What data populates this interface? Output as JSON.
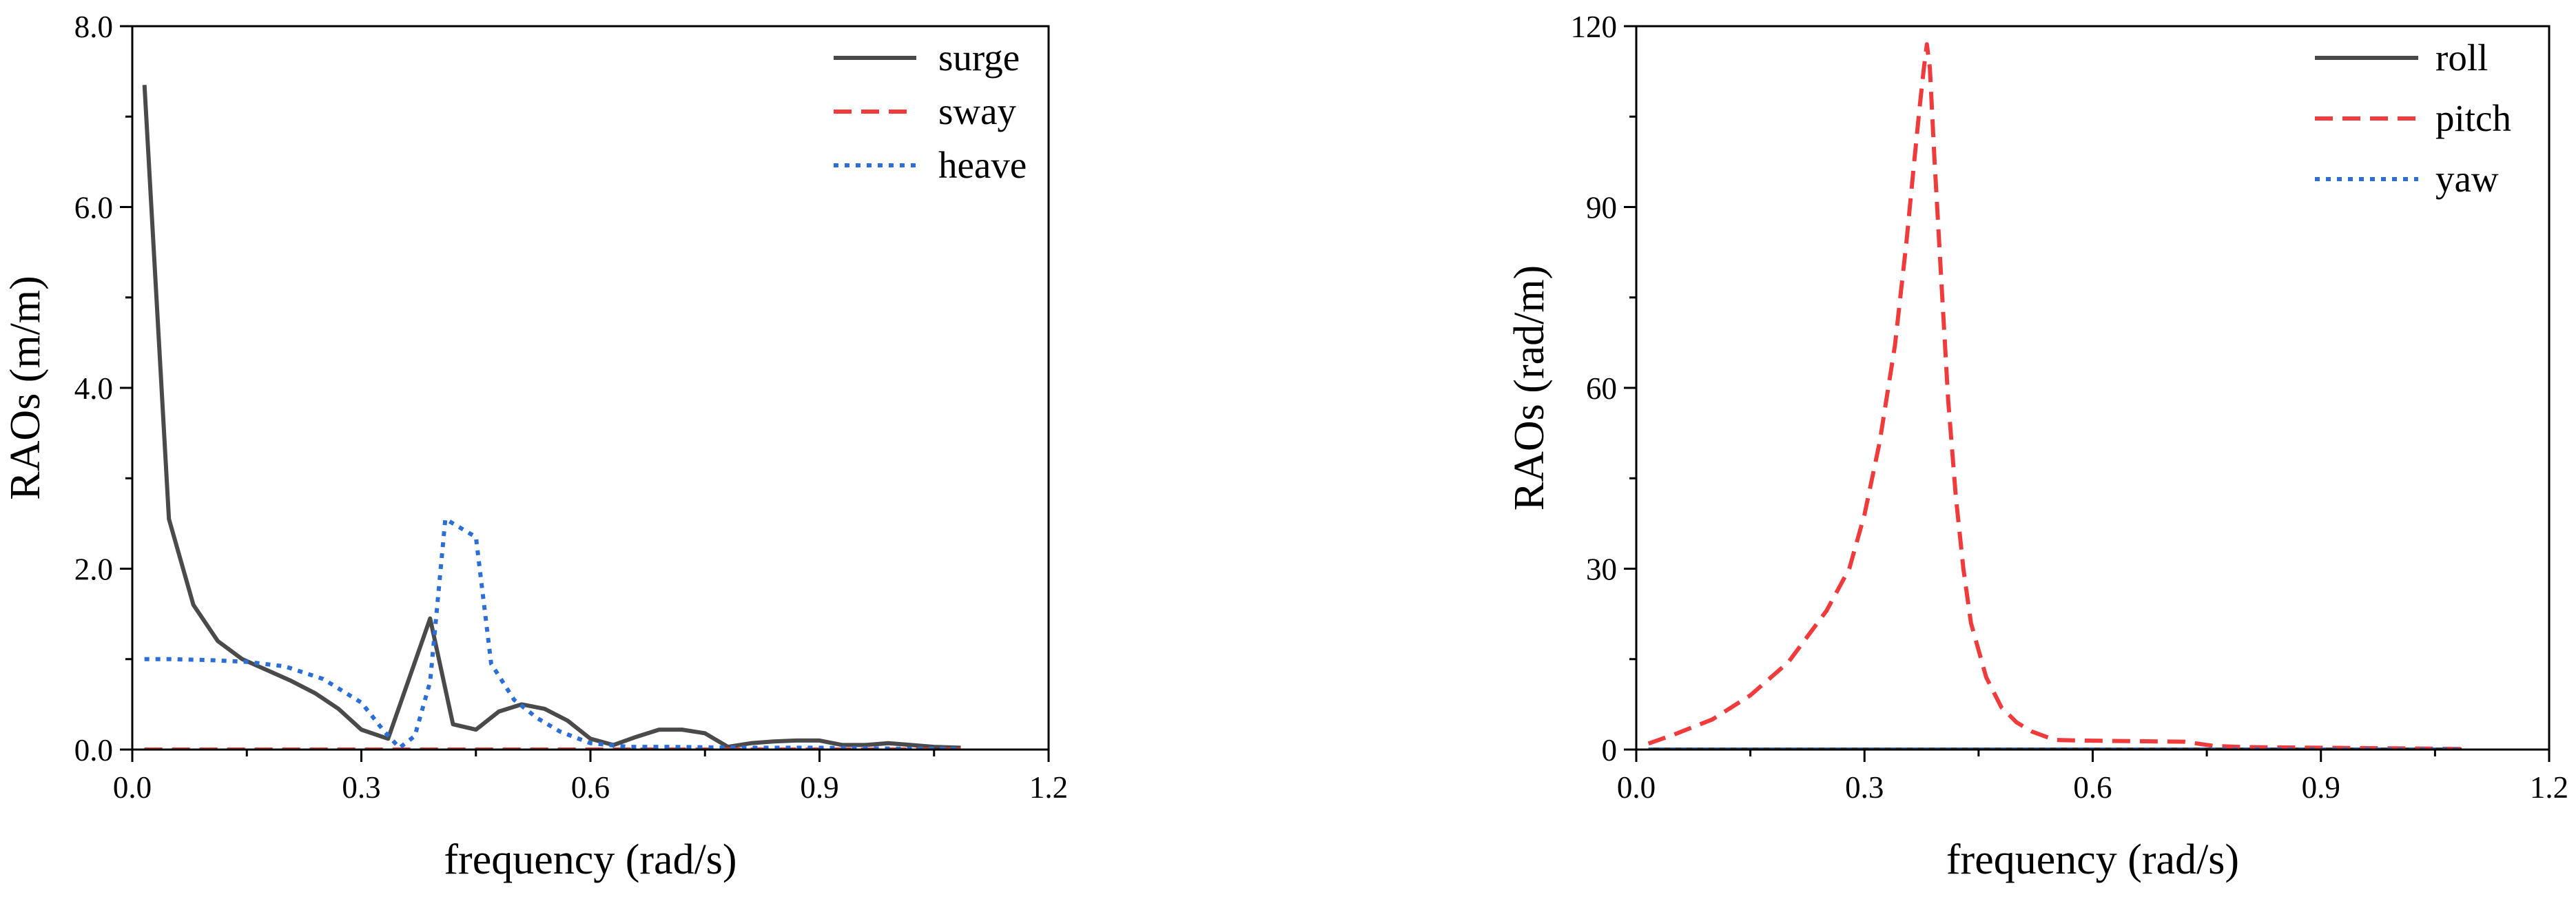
{
  "chart_data": [
    {
      "type": "line",
      "xlabel": "frequency (rad/s)",
      "ylabel": "RAOs (m/m)",
      "xlim": [
        0.0,
        1.2
      ],
      "ylim": [
        0.0,
        8.0
      ],
      "x_ticks": [
        0.0,
        0.3,
        0.6,
        0.9,
        1.2
      ],
      "x_tick_labels": [
        "0.0",
        "0.3",
        "0.6",
        "0.9",
        "1.2"
      ],
      "y_ticks": [
        0.0,
        2.0,
        4.0,
        6.0,
        8.0
      ],
      "y_tick_labels": [
        "0.0",
        "2.0",
        "4.0",
        "6.0",
        "8.0"
      ],
      "legend_position": "top-right",
      "series": [
        {
          "name": "surge",
          "color": "#4a4a4a",
          "style": "solid",
          "x": [
            0.016,
            0.048,
            0.08,
            0.112,
            0.144,
            0.176,
            0.208,
            0.24,
            0.27,
            0.3,
            0.335,
            0.39,
            0.42,
            0.45,
            0.48,
            0.51,
            0.54,
            0.57,
            0.6,
            0.63,
            0.66,
            0.69,
            0.72,
            0.75,
            0.78,
            0.81,
            0.84,
            0.87,
            0.9,
            0.93,
            0.96,
            0.99,
            1.02,
            1.05,
            1.085
          ],
          "y": [
            7.35,
            2.55,
            1.6,
            1.2,
            1.0,
            0.88,
            0.76,
            0.62,
            0.45,
            0.22,
            0.12,
            1.45,
            0.28,
            0.22,
            0.42,
            0.5,
            0.45,
            0.32,
            0.12,
            0.05,
            0.14,
            0.22,
            0.22,
            0.18,
            0.03,
            0.07,
            0.09,
            0.1,
            0.1,
            0.05,
            0.05,
            0.07,
            0.05,
            0.03,
            0.02
          ]
        },
        {
          "name": "sway",
          "color": "#ef3b3b",
          "style": "dashed",
          "x": [
            0.016,
            0.3,
            0.6,
            0.9,
            1.085
          ],
          "y": [
            0.0,
            0.0,
            0.0,
            0.0,
            0.0
          ]
        },
        {
          "name": "heave",
          "color": "#2b6fd6",
          "style": "dotted",
          "x": [
            0.016,
            0.05,
            0.1,
            0.15,
            0.2,
            0.25,
            0.3,
            0.33,
            0.35,
            0.37,
            0.39,
            0.41,
            0.43,
            0.45,
            0.47,
            0.5,
            0.53,
            0.56,
            0.6,
            0.65,
            0.7,
            0.8,
            0.9,
            1.0,
            1.085
          ],
          "y": [
            1.0,
            1.0,
            0.99,
            0.97,
            0.92,
            0.78,
            0.52,
            0.2,
            0.02,
            0.15,
            0.75,
            2.55,
            2.45,
            2.35,
            0.95,
            0.55,
            0.35,
            0.2,
            0.07,
            0.03,
            0.03,
            0.02,
            0.02,
            0.01,
            0.01
          ]
        }
      ]
    },
    {
      "type": "line",
      "xlabel": "frequency (rad/s)",
      "ylabel": "RAOs (rad/m)",
      "xlim": [
        0.0,
        1.2
      ],
      "ylim": [
        0,
        120
      ],
      "x_ticks": [
        0.0,
        0.3,
        0.6,
        0.9,
        1.2
      ],
      "x_tick_labels": [
        "0.0",
        "0.3",
        "0.6",
        "0.9",
        "1.2"
      ],
      "y_ticks": [
        0,
        30,
        60,
        90,
        120
      ],
      "y_tick_labels": [
        "0",
        "30",
        "60",
        "90",
        "120"
      ],
      "legend_position": "top-right",
      "series": [
        {
          "name": "roll",
          "color": "#4a4a4a",
          "style": "solid",
          "x": [
            0.016,
            0.3,
            0.6,
            0.9,
            1.085
          ],
          "y": [
            0.0,
            0.0,
            0.0,
            0.0,
            0.0
          ]
        },
        {
          "name": "pitch",
          "color": "#ef3b3b",
          "style": "dashed",
          "x": [
            0.016,
            0.05,
            0.1,
            0.15,
            0.2,
            0.25,
            0.28,
            0.3,
            0.32,
            0.34,
            0.355,
            0.365,
            0.372,
            0.378,
            0.382,
            0.386,
            0.392,
            0.4,
            0.41,
            0.42,
            0.43,
            0.44,
            0.46,
            0.48,
            0.5,
            0.52,
            0.55,
            0.58,
            0.65,
            0.72,
            0.76,
            0.8,
            0.9,
            1.0,
            1.085
          ],
          "y": [
            1.0,
            2.5,
            5.0,
            9.0,
            14.5,
            23.0,
            30.0,
            39.0,
            51.0,
            67.0,
            84.0,
            97.0,
            106.0,
            113.0,
            117.0,
            113.0,
            98.0,
            80.0,
            58.0,
            42.0,
            30.0,
            21.0,
            12.0,
            7.0,
            4.5,
            3.0,
            1.6,
            1.5,
            1.4,
            1.3,
            0.6,
            0.4,
            0.3,
            0.2,
            0.1
          ]
        },
        {
          "name": "yaw",
          "color": "#2b6fd6",
          "style": "dotted",
          "x": [
            0.016,
            0.3,
            0.6,
            0.9,
            1.085
          ],
          "y": [
            0.0,
            0.0,
            0.0,
            0.0,
            0.0
          ]
        }
      ]
    }
  ]
}
